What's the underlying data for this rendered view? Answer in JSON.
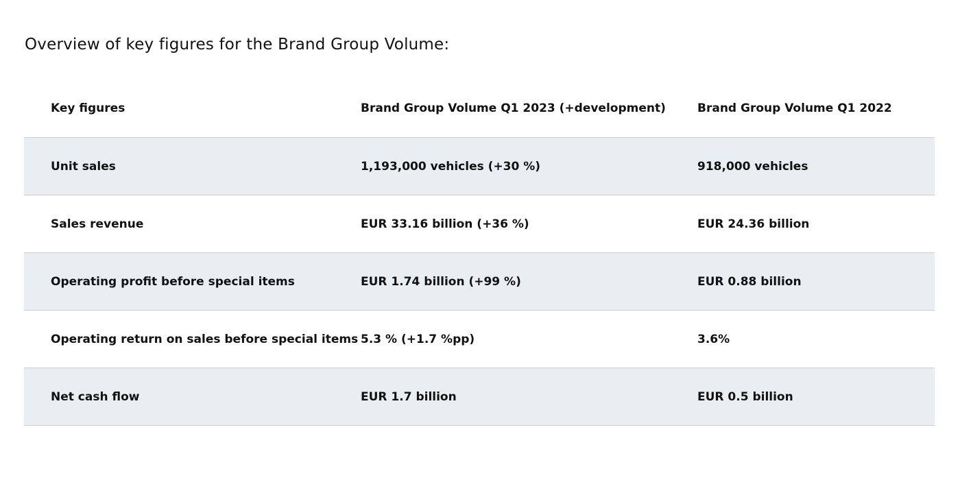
{
  "heading": "Overview of key figures for the Brand Group Volume:",
  "table": {
    "header": [
      "Key figures",
      "Brand Group Volume Q1 2023 (+development)",
      "Brand Group Volume Q1 2022"
    ],
    "rows": [
      [
        "Unit sales",
        "1,193,000 vehicles (+30 %)",
        "918,000 vehicles"
      ],
      [
        "Sales revenue",
        "EUR 33.16 billion (+36 %)",
        "EUR 24.36 billion"
      ],
      [
        "Operating profit before special items",
        "EUR 1.74 billion (+99 %)",
        "EUR 0.88 billion"
      ],
      [
        "Operating return on sales before special items",
        "5.3 % (+1.7 %pp)",
        "3.6%"
      ],
      [
        "Net cash flow",
        "EUR 1.7 billion",
        "EUR 0.5 billion"
      ]
    ]
  }
}
